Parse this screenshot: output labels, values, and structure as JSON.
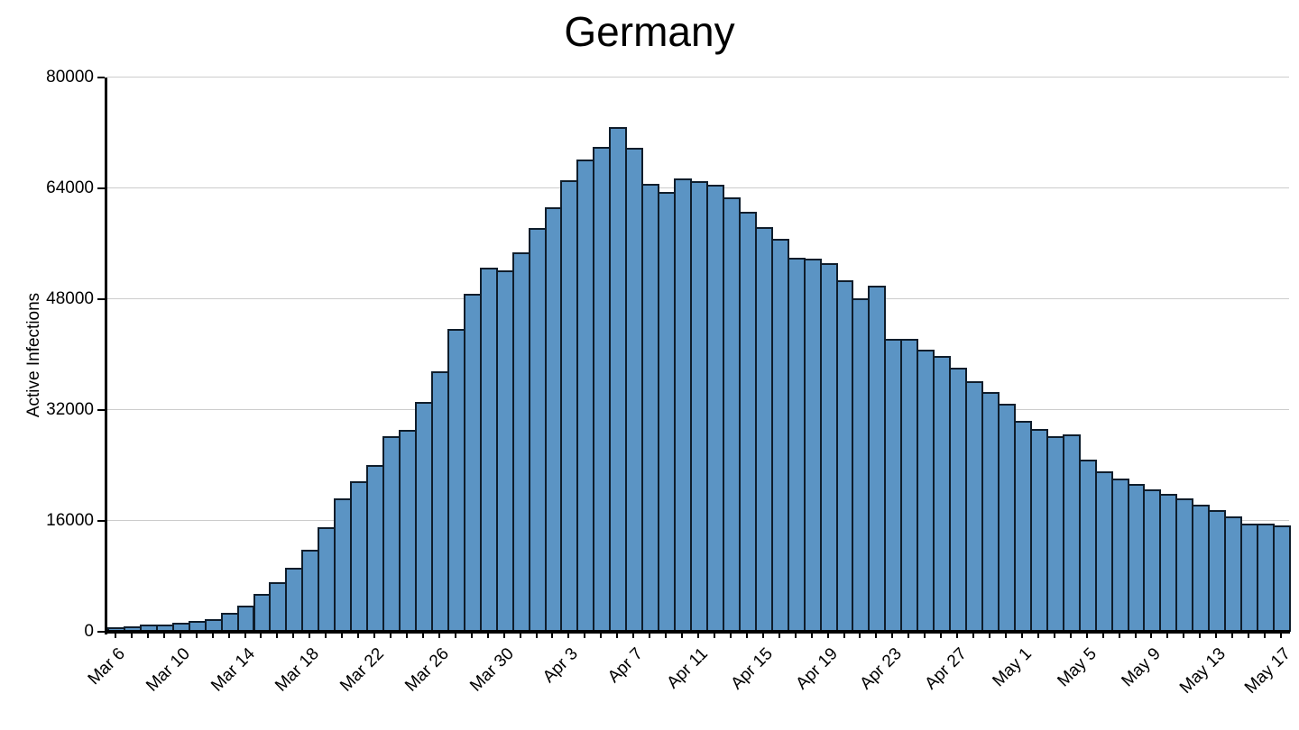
{
  "chart_data": {
    "type": "bar",
    "title": "Germany",
    "ylabel": "Active Infections",
    "xlabel": "",
    "ylim": [
      0,
      80000
    ],
    "yticks": [
      0,
      16000,
      32000,
      48000,
      64000,
      80000
    ],
    "ytick_labels": [
      "0",
      "16000",
      "32000",
      "48000",
      "64000",
      "80000"
    ],
    "grid": "horizontal-only",
    "legend": "none",
    "x_label_every": 4,
    "bar_fill_color": "#5b94c4",
    "bar_edge_color": "#0f1d2b",
    "grid_color": "#cccccc",
    "axis_color": "#000000",
    "visible_x_labels": [
      "Mar 6",
      "Mar 10",
      "Mar 14",
      "Mar 18",
      "Mar 22",
      "Mar 26",
      "Mar 30",
      "Apr 3",
      "Apr 7",
      "Apr 11",
      "Apr 15",
      "Apr 19",
      "Apr 23",
      "Apr 27",
      "May 1",
      "May 5",
      "May 9",
      "May 13",
      "May 17"
    ],
    "categories": [
      "Mar 6",
      "Mar 7",
      "Mar 8",
      "Mar 9",
      "Mar 10",
      "Mar 11",
      "Mar 12",
      "Mar 13",
      "Mar 14",
      "Mar 15",
      "Mar 16",
      "Mar 17",
      "Mar 18",
      "Mar 19",
      "Mar 20",
      "Mar 21",
      "Mar 22",
      "Mar 23",
      "Mar 24",
      "Mar 25",
      "Mar 26",
      "Mar 27",
      "Mar 28",
      "Mar 29",
      "Mar 30",
      "Mar 31",
      "Apr 1",
      "Apr 2",
      "Apr 3",
      "Apr 4",
      "Apr 5",
      "Apr 6",
      "Apr 7",
      "Apr 8",
      "Apr 9",
      "Apr 10",
      "Apr 11",
      "Apr 12",
      "Apr 13",
      "Apr 14",
      "Apr 15",
      "Apr 16",
      "Apr 17",
      "Apr 18",
      "Apr 19",
      "Apr 20",
      "Apr 21",
      "Apr 22",
      "Apr 23",
      "Apr 24",
      "Apr 25",
      "Apr 26",
      "Apr 27",
      "Apr 28",
      "Apr 29",
      "Apr 30",
      "May 1",
      "May 2",
      "May 3",
      "May 4",
      "May 5",
      "May 6",
      "May 7",
      "May 8",
      "May 9",
      "May 10",
      "May 11",
      "May 12",
      "May 13",
      "May 14",
      "May 15",
      "May 16",
      "May 17"
    ],
    "values": [
      700,
      800,
      1000,
      1100,
      1300,
      1500,
      1850,
      2700,
      3750,
      5450,
      7100,
      9300,
      11900,
      15050,
      19250,
      21750,
      24050,
      28250,
      29150,
      33200,
      37600,
      43700,
      48800,
      52500,
      52200,
      54800,
      58300,
      61300,
      65200,
      68200,
      70000,
      72900,
      69800,
      64600,
      63500,
      65400,
      65100,
      64500,
      62700,
      60600,
      58400,
      56700,
      54000,
      53800,
      53200,
      50700,
      48100,
      49900,
      42300,
      42300,
      40700,
      39800,
      38100,
      36200,
      34600,
      32900,
      30500,
      29250,
      28200,
      28500,
      24800,
      23200,
      22150,
      21350,
      20500,
      19950,
      19300,
      18350,
      17600,
      16700,
      15650,
      15650,
      15300
    ]
  }
}
